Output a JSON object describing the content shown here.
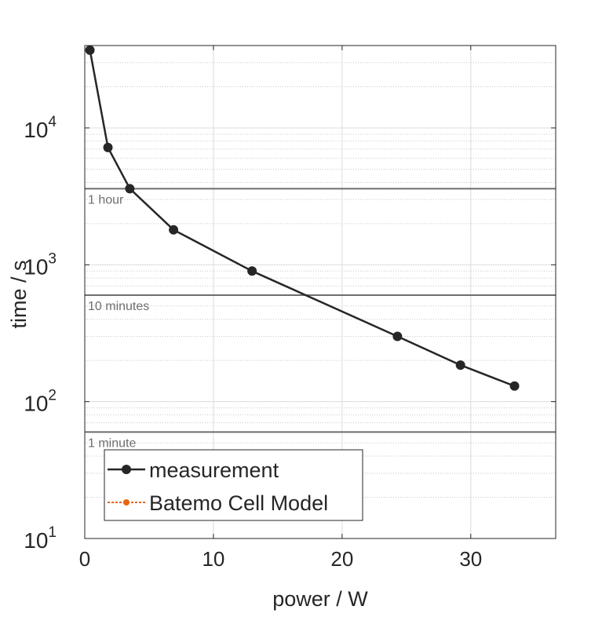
{
  "chart_data": {
    "type": "line",
    "xlabel": "power / W",
    "ylabel": "time / s",
    "xlim": [
      0,
      36.6
    ],
    "ylim": [
      10,
      40000
    ],
    "y_scale": "log",
    "grid": true,
    "x_ticks": [
      {
        "value": 0,
        "label": "0"
      },
      {
        "value": 10,
        "label": "10"
      },
      {
        "value": 20,
        "label": "20"
      },
      {
        "value": 30,
        "label": "30"
      }
    ],
    "y_ticks": [
      {
        "value": 10,
        "base": "10",
        "exp": "1"
      },
      {
        "value": 100,
        "base": "10",
        "exp": "2"
      },
      {
        "value": 1000,
        "base": "10",
        "exp": "3"
      },
      {
        "value": 10000,
        "base": "10",
        "exp": "4"
      }
    ],
    "reference_lines": [
      {
        "value": 3600,
        "label": "1 hour"
      },
      {
        "value": 600,
        "label": "10 minutes"
      },
      {
        "value": 60,
        "label": "1 minute"
      }
    ],
    "series": [
      {
        "name": "measurement",
        "color": "#262626",
        "x": [
          0.4,
          1.8,
          3.5,
          6.9,
          13.0,
          24.3,
          29.2,
          33.4
        ],
        "y": [
          37000,
          7200,
          3600,
          1800,
          900,
          300,
          185,
          130
        ]
      },
      {
        "name": "Batemo Cell Model",
        "color": "#e8650c",
        "x": [],
        "y": []
      }
    ],
    "legend": "bottom-left"
  }
}
